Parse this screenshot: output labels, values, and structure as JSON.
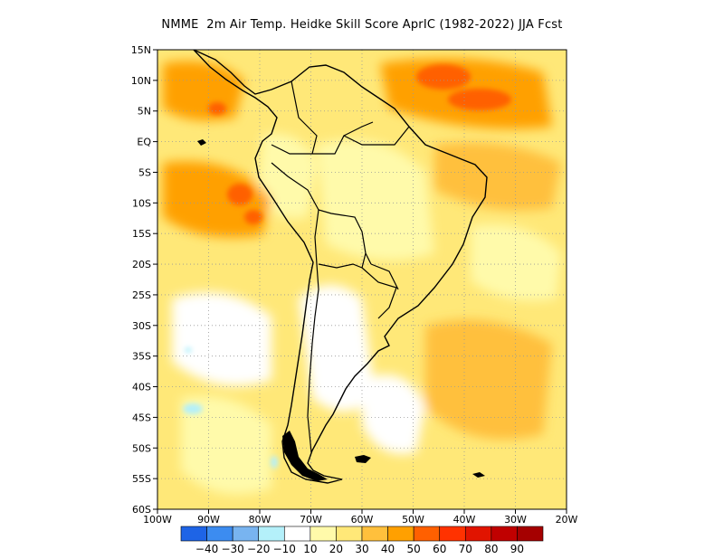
{
  "title": "NMME  2m Air Temp. Heidke Skill Score AprIC (1982-2022) JJA Fcst",
  "map": {
    "lon_range": [
      -100,
      -20
    ],
    "lat_range": [
      -60,
      15
    ],
    "y_tick_labels": [
      "15N",
      "10N",
      "5N",
      "EQ",
      "5S",
      "10S",
      "15S",
      "20S",
      "25S",
      "30S",
      "35S",
      "40S",
      "45S",
      "50S",
      "55S",
      "60S"
    ],
    "x_tick_labels": [
      "100W",
      "90W",
      "80W",
      "70W",
      "60W",
      "50W",
      "40W",
      "30W",
      "20W"
    ],
    "grid": true
  },
  "colorbar": {
    "tick_labels": [
      "-40",
      "-30",
      "-20",
      "-10",
      "10",
      "20",
      "30",
      "40",
      "50",
      "60",
      "70",
      "80",
      "90"
    ],
    "colors": [
      "#1e64e6",
      "#3c8cf0",
      "#78b4f0",
      "#b4f0fa",
      "#ffffff",
      "#fffaaa",
      "#ffe878",
      "#ffc03c",
      "#ffa000",
      "#ff6000",
      "#ff3200",
      "#e11400",
      "#c00000",
      "#a50000"
    ]
  }
}
